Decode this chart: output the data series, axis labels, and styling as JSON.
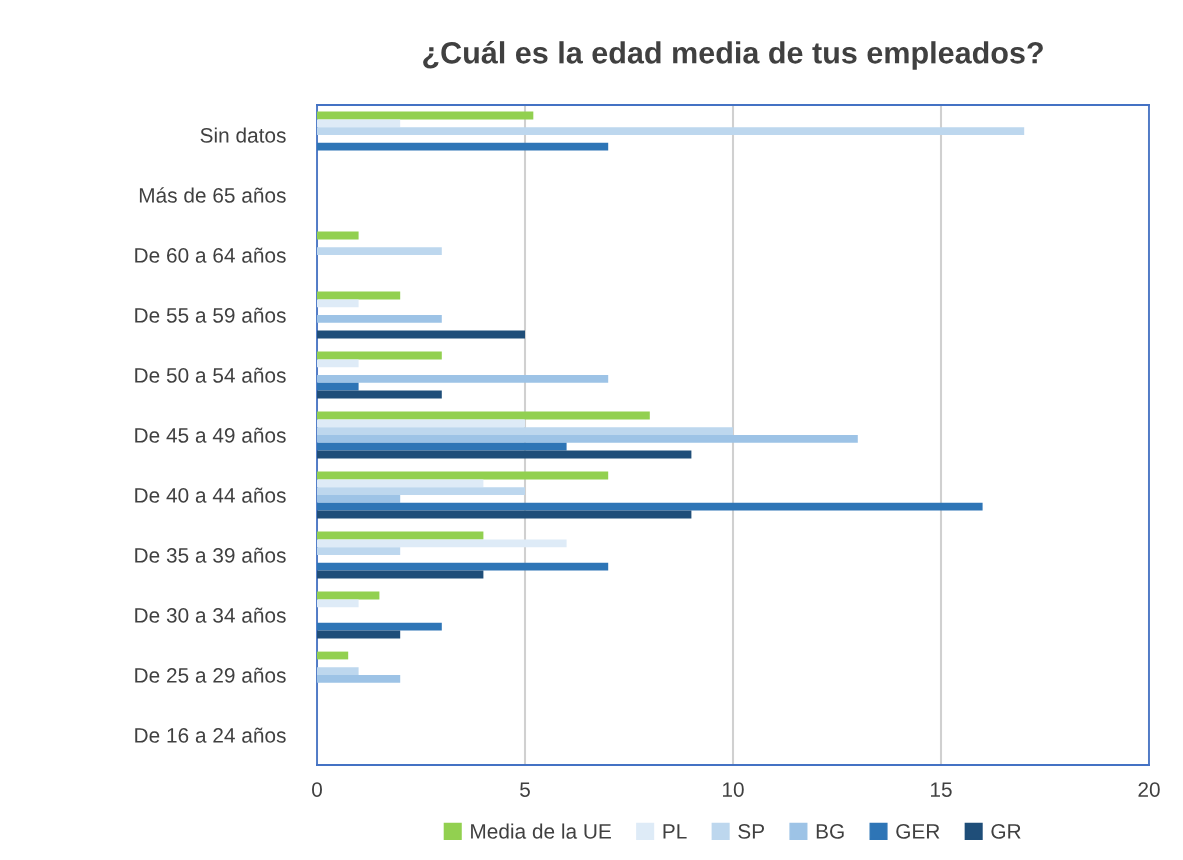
{
  "chart_data": {
    "type": "bar",
    "orientation": "horizontal",
    "title": "¿Cuál es la edad media de tus empleados?",
    "categories": [
      "Sin datos",
      "Más de 65 años",
      "De 60 a 64 años",
      "De 55 a 59 años",
      "De 50 a 54 años",
      "De 45 a 49 años",
      "De 40 a 44 años",
      "De 35 a 39 años",
      "De 30 a 34 años",
      "De 25 a 29 años",
      "De 16 a 24 años"
    ],
    "series": [
      {
        "name": "Media de la UE",
        "color": "#92d050",
        "values": [
          5.2,
          0,
          1,
          2,
          3,
          8,
          7,
          4,
          1.5,
          0.75,
          0
        ]
      },
      {
        "name": "PL",
        "color": "#deebf7",
        "values": [
          2,
          0,
          0,
          1,
          1,
          5,
          4,
          6,
          1,
          0,
          0
        ]
      },
      {
        "name": "SP",
        "color": "#bdd7ee",
        "values": [
          17,
          0,
          3,
          0,
          0,
          10,
          5,
          2,
          0,
          1,
          0
        ]
      },
      {
        "name": "BG",
        "color": "#9dc3e6",
        "values": [
          0,
          0,
          0,
          3,
          7,
          13,
          2,
          0,
          0,
          2,
          0
        ]
      },
      {
        "name": "GER",
        "color": "#2e75b6",
        "values": [
          7,
          0,
          0,
          0,
          1,
          6,
          16,
          7,
          3,
          0,
          0
        ]
      },
      {
        "name": "GR",
        "color": "#1f4e79",
        "values": [
          0,
          0,
          0,
          5,
          3,
          9,
          9,
          4,
          2,
          0,
          0
        ]
      }
    ],
    "xlim": [
      0,
      20
    ],
    "xticks": [
      0,
      5,
      10,
      15,
      20
    ],
    "grid": "x",
    "legend": "bottom"
  }
}
